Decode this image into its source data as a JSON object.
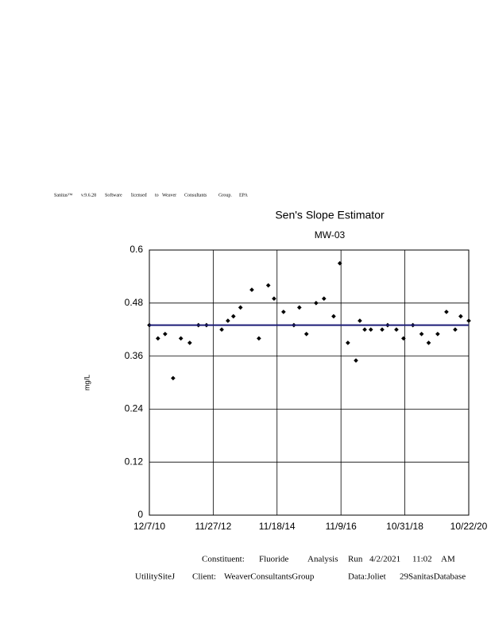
{
  "header": [
    "Sanitas™",
    "v.9.6.28",
    "Software",
    "licensed",
    "to",
    "Weaver",
    "Consultants",
    "Group.",
    "EPA"
  ],
  "chart_data": {
    "type": "scatter",
    "title": "Sen's Slope Estimator",
    "subtitle": "MW-03",
    "y_label": "mg/L",
    "x": [
      "2010-12-07",
      "2011-03-14",
      "2011-06-03",
      "2011-09-01",
      "2011-11-28",
      "2012-03-07",
      "2012-06-13",
      "2012-09-12",
      "2013-03-03",
      "2013-05-12",
      "2013-07-13",
      "2013-10-01",
      "2014-02-06",
      "2014-04-27",
      "2014-08-11",
      "2014-10-15",
      "2015-01-30",
      "2015-05-27",
      "2015-07-28",
      "2015-10-16",
      "2016-02-02",
      "2016-05-01",
      "2016-08-18",
      "2016-10-27",
      "2017-01-26",
      "2017-04-27",
      "2017-06-10",
      "2017-08-04",
      "2017-10-12",
      "2018-02-17",
      "2018-04-20",
      "2018-07-28",
      "2018-10-16",
      "2019-01-30",
      "2019-05-08",
      "2019-07-27",
      "2019-11-06",
      "2020-02-13",
      "2020-05-22",
      "2020-07-23",
      "2020-10-22"
    ],
    "values": [
      0.43,
      0.4,
      0.41,
      0.31,
      0.4,
      0.39,
      0.43,
      0.43,
      0.42,
      0.44,
      0.45,
      0.47,
      0.51,
      0.4,
      0.52,
      0.49,
      0.46,
      0.43,
      0.47,
      0.41,
      0.48,
      0.49,
      0.45,
      0.57,
      0.39,
      0.35,
      0.44,
      0.42,
      0.42,
      0.42,
      0.43,
      0.42,
      0.4,
      0.43,
      0.41,
      0.39,
      0.41,
      0.46,
      0.42,
      0.45,
      0.44
    ],
    "color": "#000000",
    "trend_line": {
      "x": [
        "2010-12-07",
        "2020-10-22"
      ],
      "values": [
        0.43,
        0.43
      ],
      "color": "#1c1c78"
    },
    "xlim": [
      "2010-12-07",
      "2020-10-22"
    ],
    "xticks": [
      {
        "value": "2010-12-07",
        "label": "12/7/10"
      },
      {
        "value": "2012-11-27",
        "label": "11/27/12"
      },
      {
        "value": "2014-11-18",
        "label": "11/18/14"
      },
      {
        "value": "2016-11-09",
        "label": "11/9/16"
      },
      {
        "value": "2018-10-31",
        "label": "10/31/18"
      },
      {
        "value": "2020-10-22",
        "label": "10/22/20"
      }
    ],
    "ylim": [
      0,
      0.6
    ],
    "yticks": [
      0,
      0.12,
      0.24,
      0.36,
      0.48,
      0.6
    ],
    "grid": true
  },
  "footer": {
    "line1": [
      "Constituent:",
      "Fluoride",
      "Analysis",
      "Run",
      "4/2/2021",
      "11:02",
      "AM"
    ],
    "line2": [
      "UtilitySiteJ",
      "Client:",
      "WeaverConsultantsGroup",
      "Data:Joliet",
      "29SanitasDatabase"
    ]
  }
}
